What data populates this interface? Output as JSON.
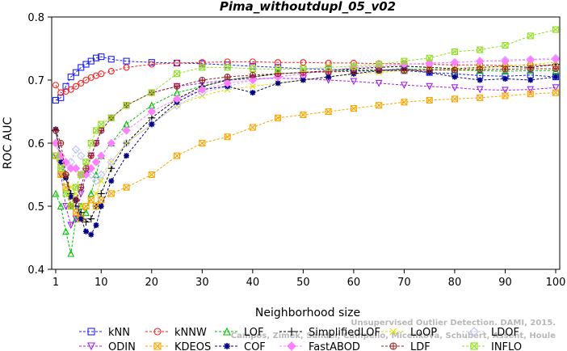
{
  "chart_data": {
    "type": "line",
    "title": "Pima_withoutdupl_05_v02",
    "xlabel": "Neighborhood size",
    "ylabel": "ROC AUC",
    "xlim": [
      0,
      100
    ],
    "ylim": [
      0.4,
      0.8
    ],
    "x_ticks": [
      "1",
      "10",
      "20",
      "30",
      "40",
      "50",
      "60",
      "70",
      "80",
      "90",
      "100"
    ],
    "y_ticks": [
      "0.4",
      "0.5",
      "0.6",
      "0.7",
      "0.8"
    ],
    "grid": false,
    "legend_position": "bottom",
    "x": [
      1,
      2,
      3,
      4,
      5,
      6,
      7,
      8,
      9,
      10,
      12,
      15,
      20,
      25,
      30,
      35,
      40,
      45,
      50,
      55,
      60,
      65,
      70,
      75,
      80,
      85,
      90,
      95,
      100
    ],
    "series": [
      {
        "name": "kNN",
        "color": "#1f1fff",
        "marker": "square",
        "values": [
          0.668,
          0.672,
          0.69,
          0.705,
          0.712,
          0.72,
          0.725,
          0.73,
          0.735,
          0.737,
          0.733,
          0.73,
          0.728,
          0.727,
          0.726,
          0.724,
          0.722,
          0.72,
          0.718,
          0.717,
          0.716,
          0.716,
          0.715,
          0.712,
          0.71,
          0.707,
          0.706,
          0.708,
          0.705
        ]
      },
      {
        "name": "kNNW",
        "color": "#ff2020",
        "marker": "circle",
        "values": [
          0.692,
          0.68,
          0.682,
          0.685,
          0.69,
          0.695,
          0.7,
          0.704,
          0.707,
          0.71,
          0.714,
          0.72,
          0.725,
          0.727,
          0.728,
          0.729,
          0.729,
          0.728,
          0.728,
          0.727,
          0.727,
          0.726,
          0.726,
          0.725,
          0.724,
          0.724,
          0.723,
          0.724,
          0.723
        ]
      },
      {
        "name": "LOF",
        "color": "#00c000",
        "marker": "triangle-up",
        "values": [
          0.52,
          0.5,
          0.46,
          0.425,
          0.48,
          0.5,
          0.49,
          0.52,
          0.55,
          0.58,
          0.6,
          0.63,
          0.66,
          0.68,
          0.69,
          0.7,
          0.705,
          0.71,
          0.712,
          0.714,
          0.715,
          0.716,
          0.717,
          0.717,
          0.716,
          0.715,
          0.714,
          0.715,
          0.715
        ]
      },
      {
        "name": "SimplifiedLOF",
        "color": "#000000",
        "marker": "plus",
        "values": [
          0.62,
          0.58,
          0.55,
          0.52,
          0.5,
          0.49,
          0.475,
          0.48,
          0.5,
          0.52,
          0.56,
          0.6,
          0.64,
          0.67,
          0.69,
          0.7,
          0.705,
          0.71,
          0.712,
          0.715,
          0.718,
          0.72,
          0.722,
          0.72,
          0.718,
          0.72,
          0.722,
          0.72,
          0.725
        ]
      },
      {
        "name": "LoOP",
        "color": "#e0e000",
        "marker": "x",
        "values": [
          0.6,
          0.57,
          0.55,
          0.53,
          0.52,
          0.5,
          0.5,
          0.51,
          0.52,
          0.54,
          0.57,
          0.6,
          0.63,
          0.66,
          0.675,
          0.685,
          0.69,
          0.695,
          0.7,
          0.705,
          0.71,
          0.712,
          0.715,
          0.716,
          0.718,
          0.72,
          0.722,
          0.725,
          0.728
        ]
      },
      {
        "name": "LDOF",
        "color": "#c0c0ff",
        "marker": "diamond",
        "values": [
          0.6,
          0.58,
          0.56,
          0.57,
          0.59,
          0.58,
          0.56,
          0.55,
          0.54,
          0.55,
          0.57,
          0.6,
          0.63,
          0.66,
          0.68,
          0.69,
          0.7,
          0.705,
          0.71,
          0.715,
          0.72,
          0.722,
          0.725,
          0.726,
          0.728,
          0.73,
          0.732,
          0.733,
          0.735
        ]
      },
      {
        "name": "ODIN",
        "color": "#a020f0",
        "marker": "triangle-down",
        "values": [
          0.58,
          0.55,
          0.5,
          0.47,
          0.48,
          0.52,
          0.55,
          0.58,
          0.6,
          0.62,
          0.64,
          0.66,
          0.68,
          0.69,
          0.695,
          0.7,
          0.702,
          0.703,
          0.702,
          0.7,
          0.698,
          0.695,
          0.692,
          0.69,
          0.688,
          0.685,
          0.684,
          0.685,
          0.688
        ]
      },
      {
        "name": "KDEOS",
        "color": "#ffa500",
        "marker": "square-x",
        "values": [
          0.58,
          0.55,
          0.53,
          0.5,
          0.49,
          0.48,
          0.5,
          0.51,
          0.5,
          0.51,
          0.52,
          0.53,
          0.55,
          0.58,
          0.6,
          0.61,
          0.625,
          0.64,
          0.645,
          0.65,
          0.655,
          0.66,
          0.665,
          0.668,
          0.67,
          0.672,
          0.675,
          0.678,
          0.68
        ]
      },
      {
        "name": "COF",
        "color": "#000080",
        "marker": "asterisk",
        "values": [
          0.622,
          0.57,
          0.545,
          0.515,
          0.51,
          0.48,
          0.46,
          0.455,
          0.47,
          0.5,
          0.54,
          0.58,
          0.63,
          0.665,
          0.685,
          0.69,
          0.68,
          0.695,
          0.7,
          0.705,
          0.71,
          0.715,
          0.718,
          0.712,
          0.705,
          0.7,
          0.702,
          0.7,
          0.705
        ]
      },
      {
        "name": "FastABOD",
        "color": "#ff80ff",
        "marker": "diamond-filled",
        "values": [
          0.6,
          0.58,
          0.57,
          0.56,
          0.56,
          0.55,
          0.55,
          0.56,
          0.57,
          0.58,
          0.6,
          0.62,
          0.65,
          0.67,
          0.685,
          0.695,
          0.7,
          0.705,
          0.71,
          0.715,
          0.72,
          0.722,
          0.725,
          0.727,
          0.728,
          0.73,
          0.73,
          0.732,
          0.733
        ]
      },
      {
        "name": "LDF",
        "color": "#a02020",
        "marker": "circle-plus",
        "values": [
          0.62,
          0.6,
          0.55,
          0.5,
          0.51,
          0.53,
          0.56,
          0.58,
          0.6,
          0.62,
          0.64,
          0.66,
          0.68,
          0.69,
          0.7,
          0.705,
          0.708,
          0.71,
          0.712,
          0.713,
          0.714,
          0.715,
          0.715,
          0.716,
          0.716,
          0.717,
          0.717,
          0.718,
          0.718
        ]
      },
      {
        "name": "INFLO",
        "color": "#90e020",
        "marker": "hourglass",
        "values": [
          0.58,
          0.56,
          0.52,
          0.5,
          0.53,
          0.55,
          0.57,
          0.6,
          0.62,
          0.63,
          0.64,
          0.66,
          0.68,
          0.71,
          0.72,
          0.72,
          0.718,
          0.717,
          0.718,
          0.72,
          0.722,
          0.725,
          0.73,
          0.735,
          0.745,
          0.748,
          0.755,
          0.77,
          0.78
        ]
      }
    ],
    "legend_rows": [
      [
        "kNN",
        "kNNW",
        "LOF",
        "SimplifiedLOF",
        "LoOP",
        "LDOF"
      ],
      [
        "ODIN",
        "KDEOS",
        "COF",
        "FastABOD",
        "LDF",
        "INFLO"
      ]
    ],
    "watermark": [
      "Campos, Zimek, Sander, Campello, Micenkova, Schubert, Assent, Houle",
      "Unsupervised Outlier Detection. DAMI, 2015."
    ]
  }
}
